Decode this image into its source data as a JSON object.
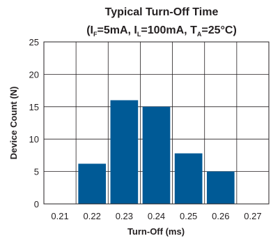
{
  "chart_data": {
    "type": "bar",
    "title": "Typical Turn-Off Time",
    "subtitle": {
      "open": "(I",
      "if_sub": "F",
      "if_val": "=5mA, I",
      "il_sub": "L",
      "il_val": "=100mA, T",
      "ta_sub": "A",
      "ta_val": "=25°C)"
    },
    "xlabel": "Turn-Off (ms)",
    "ylabel": "Device Count (N)",
    "x_ticks": [
      "0.21",
      "0.22",
      "0.23",
      "0.24",
      "0.25",
      "0.26",
      "0.27"
    ],
    "y_ticks": [
      "0",
      "5",
      "10",
      "15",
      "20",
      "25"
    ],
    "ylim": [
      0,
      25
    ],
    "categories": [
      "0.22",
      "0.23",
      "0.24",
      "0.25",
      "0.26"
    ],
    "values": [
      6.2,
      16,
      15,
      7.8,
      5
    ],
    "grid": true,
    "bar_color": "#005a96"
  }
}
